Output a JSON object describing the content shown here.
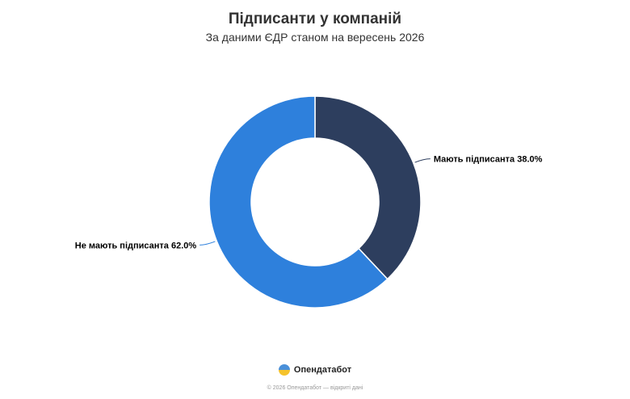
{
  "chart_data": {
    "type": "pie",
    "title": "Підписанти у компаній",
    "subtitle": "За даними ЄДР станом на вересень 2026",
    "slices": [
      {
        "label": "Мають підписанта 38.0%",
        "value": 38.0,
        "color": "#2d3e5e"
      },
      {
        "label": "Не мають підписанта 62.0%",
        "value": 62.0,
        "color": "#2e80dc"
      }
    ],
    "donut": true
  },
  "brand": {
    "name": "Опендатабот",
    "logo_icon": "opendatabot-logo-icon"
  },
  "footer": {
    "text": "© 2026 Опендатабот — відкриті дані"
  }
}
